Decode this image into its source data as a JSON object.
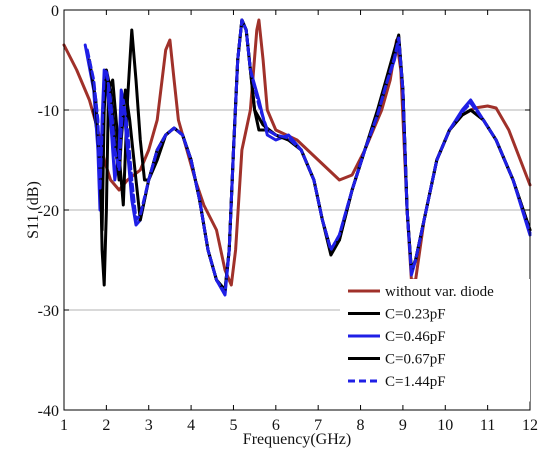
{
  "chart_data": {
    "type": "line",
    "xlabel": "Frequency(GHz)",
    "ylabel": "S11 (dB)",
    "xlim": [
      1,
      12
    ],
    "ylim": [
      -40,
      0
    ],
    "xticks": [
      1,
      2,
      3,
      4,
      5,
      6,
      7,
      8,
      9,
      10,
      11,
      12
    ],
    "yticks": [
      0,
      -10,
      -20,
      -30,
      -40
    ],
    "grid": "horizontal",
    "legend_position": "bottom-right",
    "series": [
      {
        "name": "without var. diode",
        "color": "#a0312a",
        "dash": false,
        "points": [
          [
            1,
            -3.5
          ],
          [
            1.3,
            -6
          ],
          [
            1.6,
            -9
          ],
          [
            1.8,
            -12
          ],
          [
            1.95,
            -15
          ],
          [
            2.1,
            -17
          ],
          [
            2.3,
            -18
          ],
          [
            2.5,
            -17
          ],
          [
            2.8,
            -16
          ],
          [
            3.0,
            -14
          ],
          [
            3.2,
            -11
          ],
          [
            3.4,
            -4
          ],
          [
            3.5,
            -3
          ],
          [
            3.6,
            -7
          ],
          [
            3.7,
            -11
          ],
          [
            3.9,
            -14
          ],
          [
            4.1,
            -17
          ],
          [
            4.3,
            -19.5
          ],
          [
            4.6,
            -22
          ],
          [
            4.8,
            -26
          ],
          [
            4.95,
            -27.5
          ],
          [
            5.05,
            -24
          ],
          [
            5.2,
            -14
          ],
          [
            5.4,
            -10
          ],
          [
            5.55,
            -2
          ],
          [
            5.6,
            -1
          ],
          [
            5.7,
            -5
          ],
          [
            5.8,
            -10
          ],
          [
            6.0,
            -12
          ],
          [
            6.5,
            -13
          ],
          [
            7.0,
            -15
          ],
          [
            7.5,
            -17
          ],
          [
            7.8,
            -16.5
          ],
          [
            8.1,
            -14
          ],
          [
            8.5,
            -10
          ],
          [
            8.7,
            -7
          ],
          [
            8.85,
            -3
          ],
          [
            8.95,
            -6
          ],
          [
            9.1,
            -20
          ],
          [
            9.2,
            -27
          ],
          [
            9.3,
            -27
          ],
          [
            9.5,
            -21
          ],
          [
            9.8,
            -15
          ],
          [
            10.1,
            -12
          ],
          [
            10.4,
            -10.5
          ],
          [
            10.7,
            -9.8
          ],
          [
            11.0,
            -9.6
          ],
          [
            11.2,
            -9.8
          ],
          [
            11.5,
            -12
          ],
          [
            12.0,
            -17.5
          ]
        ]
      },
      {
        "name": "C=0.23pF",
        "color": "#000000",
        "dash": false,
        "points": [
          [
            1.7,
            -10
          ],
          [
            1.85,
            -14
          ],
          [
            1.9,
            -24
          ],
          [
            1.95,
            -27.5
          ],
          [
            2.0,
            -20
          ],
          [
            2.05,
            -8
          ],
          [
            2.15,
            -7
          ],
          [
            2.25,
            -12
          ],
          [
            2.35,
            -17
          ],
          [
            2.4,
            -19.5
          ],
          [
            2.5,
            -9
          ],
          [
            2.6,
            -2
          ],
          [
            2.7,
            -7
          ],
          [
            2.8,
            -13
          ],
          [
            2.9,
            -17
          ],
          [
            3.0,
            -17
          ],
          [
            3.2,
            -15
          ],
          [
            3.4,
            -12.5
          ],
          [
            3.6,
            -11.8
          ],
          [
            3.8,
            -12.5
          ],
          [
            4.0,
            -15
          ],
          [
            4.2,
            -19
          ],
          [
            4.4,
            -24
          ],
          [
            4.6,
            -27
          ],
          [
            4.8,
            -28
          ],
          [
            4.9,
            -24
          ],
          [
            5.0,
            -14
          ],
          [
            5.1,
            -5
          ],
          [
            5.2,
            -1
          ],
          [
            5.3,
            -2
          ],
          [
            5.4,
            -6
          ],
          [
            5.5,
            -10
          ],
          [
            5.6,
            -12
          ],
          [
            5.8,
            -12
          ],
          [
            6.0,
            -12.5
          ],
          [
            6.3,
            -13
          ],
          [
            6.6,
            -14
          ],
          [
            6.9,
            -17
          ],
          [
            7.1,
            -21
          ],
          [
            7.3,
            -24.5
          ],
          [
            7.5,
            -23
          ],
          [
            7.8,
            -18
          ],
          [
            8.1,
            -14
          ],
          [
            8.4,
            -10
          ],
          [
            8.6,
            -7
          ],
          [
            8.8,
            -4
          ],
          [
            8.9,
            -2.5
          ],
          [
            9.0,
            -8
          ],
          [
            9.1,
            -20
          ],
          [
            9.2,
            -26
          ],
          [
            9.3,
            -25
          ],
          [
            9.5,
            -21
          ],
          [
            9.8,
            -15
          ],
          [
            10.1,
            -12
          ],
          [
            10.4,
            -10.5
          ],
          [
            10.6,
            -10
          ],
          [
            10.9,
            -11
          ],
          [
            11.2,
            -13
          ],
          [
            11.6,
            -17
          ],
          [
            12.0,
            -22
          ]
        ]
      },
      {
        "name": "C=0.46pF",
        "color": "#1f1fe6",
        "dash": false,
        "points": [
          [
            1.5,
            -3.5
          ],
          [
            1.7,
            -8
          ],
          [
            1.8,
            -14
          ],
          [
            1.85,
            -20
          ],
          [
            1.9,
            -11
          ],
          [
            1.95,
            -6
          ],
          [
            2.0,
            -7
          ],
          [
            2.1,
            -11
          ],
          [
            2.2,
            -17
          ],
          [
            2.3,
            -14
          ],
          [
            2.35,
            -8
          ],
          [
            2.4,
            -9
          ],
          [
            2.5,
            -14
          ],
          [
            2.6,
            -19
          ],
          [
            2.7,
            -21.5
          ],
          [
            2.8,
            -21
          ],
          [
            3.0,
            -17
          ],
          [
            3.2,
            -14
          ],
          [
            3.4,
            -12.5
          ],
          [
            3.6,
            -11.8
          ],
          [
            3.8,
            -12.5
          ],
          [
            4.0,
            -15
          ],
          [
            4.2,
            -19
          ],
          [
            4.4,
            -24
          ],
          [
            4.6,
            -27
          ],
          [
            4.8,
            -28.5
          ],
          [
            4.9,
            -24
          ],
          [
            5.0,
            -14
          ],
          [
            5.1,
            -5
          ],
          [
            5.2,
            -1
          ],
          [
            5.3,
            -2
          ],
          [
            5.4,
            -6
          ],
          [
            5.6,
            -9
          ],
          [
            5.8,
            -12.5
          ],
          [
            6.0,
            -13
          ],
          [
            6.3,
            -12.5
          ],
          [
            6.6,
            -14
          ],
          [
            6.9,
            -17
          ],
          [
            7.1,
            -21
          ],
          [
            7.3,
            -24
          ],
          [
            7.5,
            -22.5
          ],
          [
            7.8,
            -18
          ],
          [
            8.1,
            -14
          ],
          [
            8.4,
            -10.5
          ],
          [
            8.6,
            -7.5
          ],
          [
            8.8,
            -5
          ],
          [
            8.9,
            -3
          ],
          [
            9.0,
            -8
          ],
          [
            9.1,
            -20
          ],
          [
            9.2,
            -26.5
          ],
          [
            9.3,
            -25
          ],
          [
            9.5,
            -21
          ],
          [
            9.8,
            -15
          ],
          [
            10.1,
            -12
          ],
          [
            10.4,
            -10
          ],
          [
            10.6,
            -9
          ],
          [
            10.9,
            -11
          ],
          [
            11.2,
            -13
          ],
          [
            11.6,
            -17
          ],
          [
            12.0,
            -22.5
          ]
        ]
      },
      {
        "name": "C=0.67pF",
        "color": "#000000",
        "dash": false,
        "points": [
          [
            1.6,
            -5
          ],
          [
            1.75,
            -9
          ],
          [
            1.85,
            -16
          ],
          [
            1.9,
            -22
          ],
          [
            1.95,
            -10
          ],
          [
            2.0,
            -6
          ],
          [
            2.1,
            -8
          ],
          [
            2.2,
            -13
          ],
          [
            2.3,
            -17
          ],
          [
            2.35,
            -13
          ],
          [
            2.45,
            -8
          ],
          [
            2.55,
            -11
          ],
          [
            2.7,
            -17
          ],
          [
            2.8,
            -21
          ],
          [
            3.0,
            -17
          ],
          [
            3.2,
            -14
          ],
          [
            3.4,
            -12.5
          ],
          [
            3.6,
            -11.8
          ],
          [
            3.8,
            -12.5
          ],
          [
            4.0,
            -15
          ],
          [
            4.2,
            -19
          ],
          [
            4.4,
            -24
          ],
          [
            4.6,
            -27
          ],
          [
            4.8,
            -28
          ],
          [
            4.9,
            -24
          ],
          [
            5.0,
            -14
          ],
          [
            5.1,
            -5
          ],
          [
            5.2,
            -1
          ],
          [
            5.3,
            -2
          ],
          [
            5.4,
            -6
          ],
          [
            5.5,
            -10
          ],
          [
            5.7,
            -11.5
          ],
          [
            6.0,
            -12.5
          ],
          [
            6.3,
            -13
          ],
          [
            6.6,
            -14
          ],
          [
            6.9,
            -17
          ],
          [
            7.1,
            -21
          ],
          [
            7.3,
            -24
          ],
          [
            7.5,
            -23
          ],
          [
            7.8,
            -18
          ],
          [
            8.1,
            -14
          ],
          [
            8.4,
            -10.5
          ],
          [
            8.6,
            -7.5
          ],
          [
            8.8,
            -4.5
          ],
          [
            8.9,
            -2.7
          ],
          [
            9.0,
            -8
          ],
          [
            9.1,
            -20
          ],
          [
            9.2,
            -26
          ],
          [
            9.3,
            -25
          ],
          [
            9.5,
            -21
          ],
          [
            9.8,
            -15
          ],
          [
            10.1,
            -12
          ],
          [
            10.4,
            -10.5
          ],
          [
            10.6,
            -10
          ],
          [
            10.9,
            -11
          ],
          [
            11.2,
            -13
          ],
          [
            11.6,
            -17
          ],
          [
            12.0,
            -22
          ]
        ]
      },
      {
        "name": "C=1.44pF",
        "color": "#1f1fe6",
        "dash": true,
        "points": [
          [
            1.55,
            -4
          ],
          [
            1.7,
            -7
          ],
          [
            1.8,
            -11
          ],
          [
            1.85,
            -18
          ],
          [
            1.9,
            -12
          ],
          [
            1.95,
            -6.5
          ],
          [
            2.0,
            -6
          ],
          [
            2.1,
            -9
          ],
          [
            2.2,
            -14
          ],
          [
            2.3,
            -16
          ],
          [
            2.35,
            -12
          ],
          [
            2.4,
            -9
          ],
          [
            2.5,
            -12
          ],
          [
            2.6,
            -17
          ],
          [
            2.7,
            -21
          ],
          [
            2.8,
            -20.5
          ],
          [
            3.0,
            -17
          ],
          [
            3.2,
            -14
          ],
          [
            3.4,
            -12.5
          ],
          [
            3.6,
            -11.8
          ],
          [
            3.8,
            -12.5
          ],
          [
            4.0,
            -15
          ],
          [
            4.2,
            -19
          ],
          [
            4.4,
            -24
          ],
          [
            4.6,
            -27
          ],
          [
            4.8,
            -28.3
          ],
          [
            4.9,
            -24
          ],
          [
            5.0,
            -14
          ],
          [
            5.1,
            -5
          ],
          [
            5.2,
            -1
          ],
          [
            5.3,
            -2
          ],
          [
            5.4,
            -6
          ],
          [
            5.6,
            -9.5
          ],
          [
            5.8,
            -12
          ],
          [
            6.0,
            -12.5
          ],
          [
            6.3,
            -12.8
          ],
          [
            6.6,
            -14
          ],
          [
            6.9,
            -17
          ],
          [
            7.1,
            -21
          ],
          [
            7.3,
            -24
          ],
          [
            7.5,
            -22.5
          ],
          [
            7.8,
            -18
          ],
          [
            8.1,
            -14
          ],
          [
            8.4,
            -10.5
          ],
          [
            8.6,
            -7.5
          ],
          [
            8.8,
            -4.8
          ],
          [
            8.9,
            -2.8
          ],
          [
            9.0,
            -8
          ],
          [
            9.1,
            -20
          ],
          [
            9.2,
            -26.2
          ],
          [
            9.3,
            -25
          ],
          [
            9.5,
            -21
          ],
          [
            9.8,
            -15
          ],
          [
            10.1,
            -12
          ],
          [
            10.4,
            -10.2
          ],
          [
            10.6,
            -9.3
          ],
          [
            10.9,
            -11
          ],
          [
            11.2,
            -13
          ],
          [
            11.6,
            -17
          ],
          [
            12.0,
            -22.3
          ]
        ]
      }
    ]
  }
}
